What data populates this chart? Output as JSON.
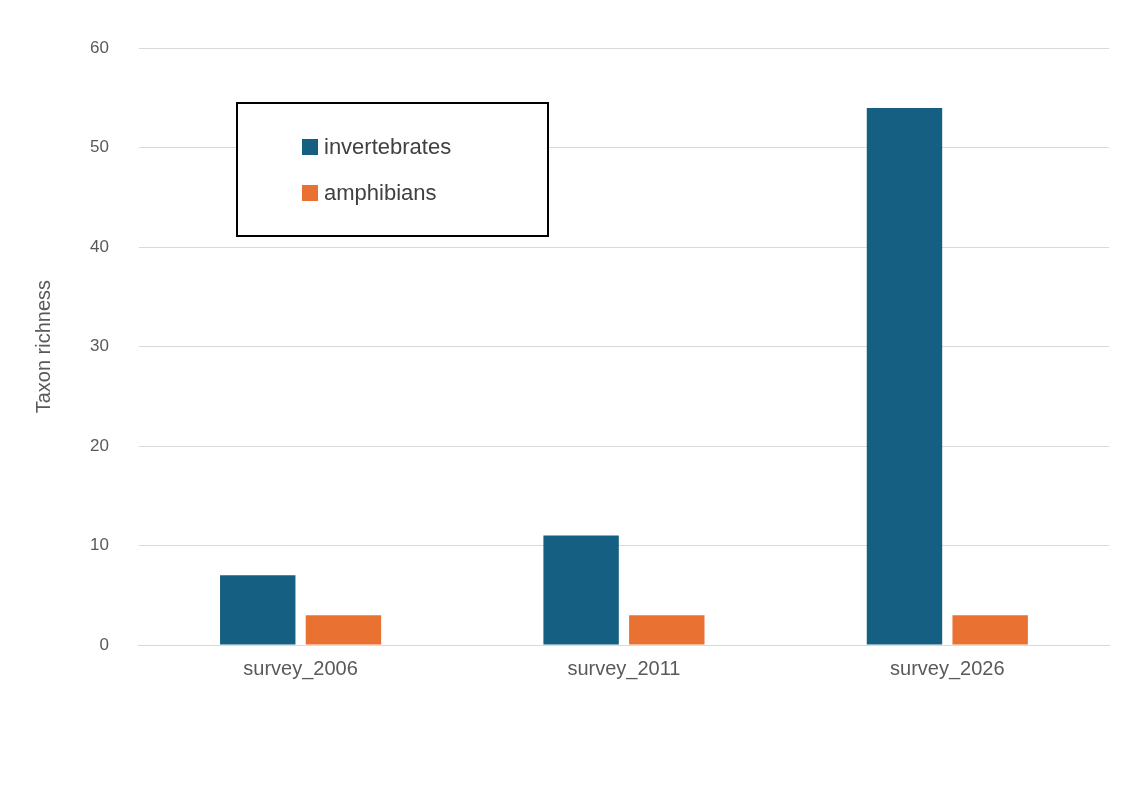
{
  "chart_data": {
    "type": "bar",
    "ylabel": "Taxon richness",
    "categories": [
      "survey_2006",
      "survey_2011",
      "survey_2026"
    ],
    "series": [
      {
        "name": "invertebrates",
        "color": "#156082",
        "values": [
          7,
          11,
          54
        ]
      },
      {
        "name": "amphibians",
        "color": "#e97132",
        "values": [
          3,
          3,
          3
        ]
      }
    ],
    "ylim": [
      0,
      60
    ],
    "yticks": [
      0,
      10,
      20,
      30,
      40,
      50,
      60
    ],
    "grid": "y",
    "legend": "top left"
  }
}
